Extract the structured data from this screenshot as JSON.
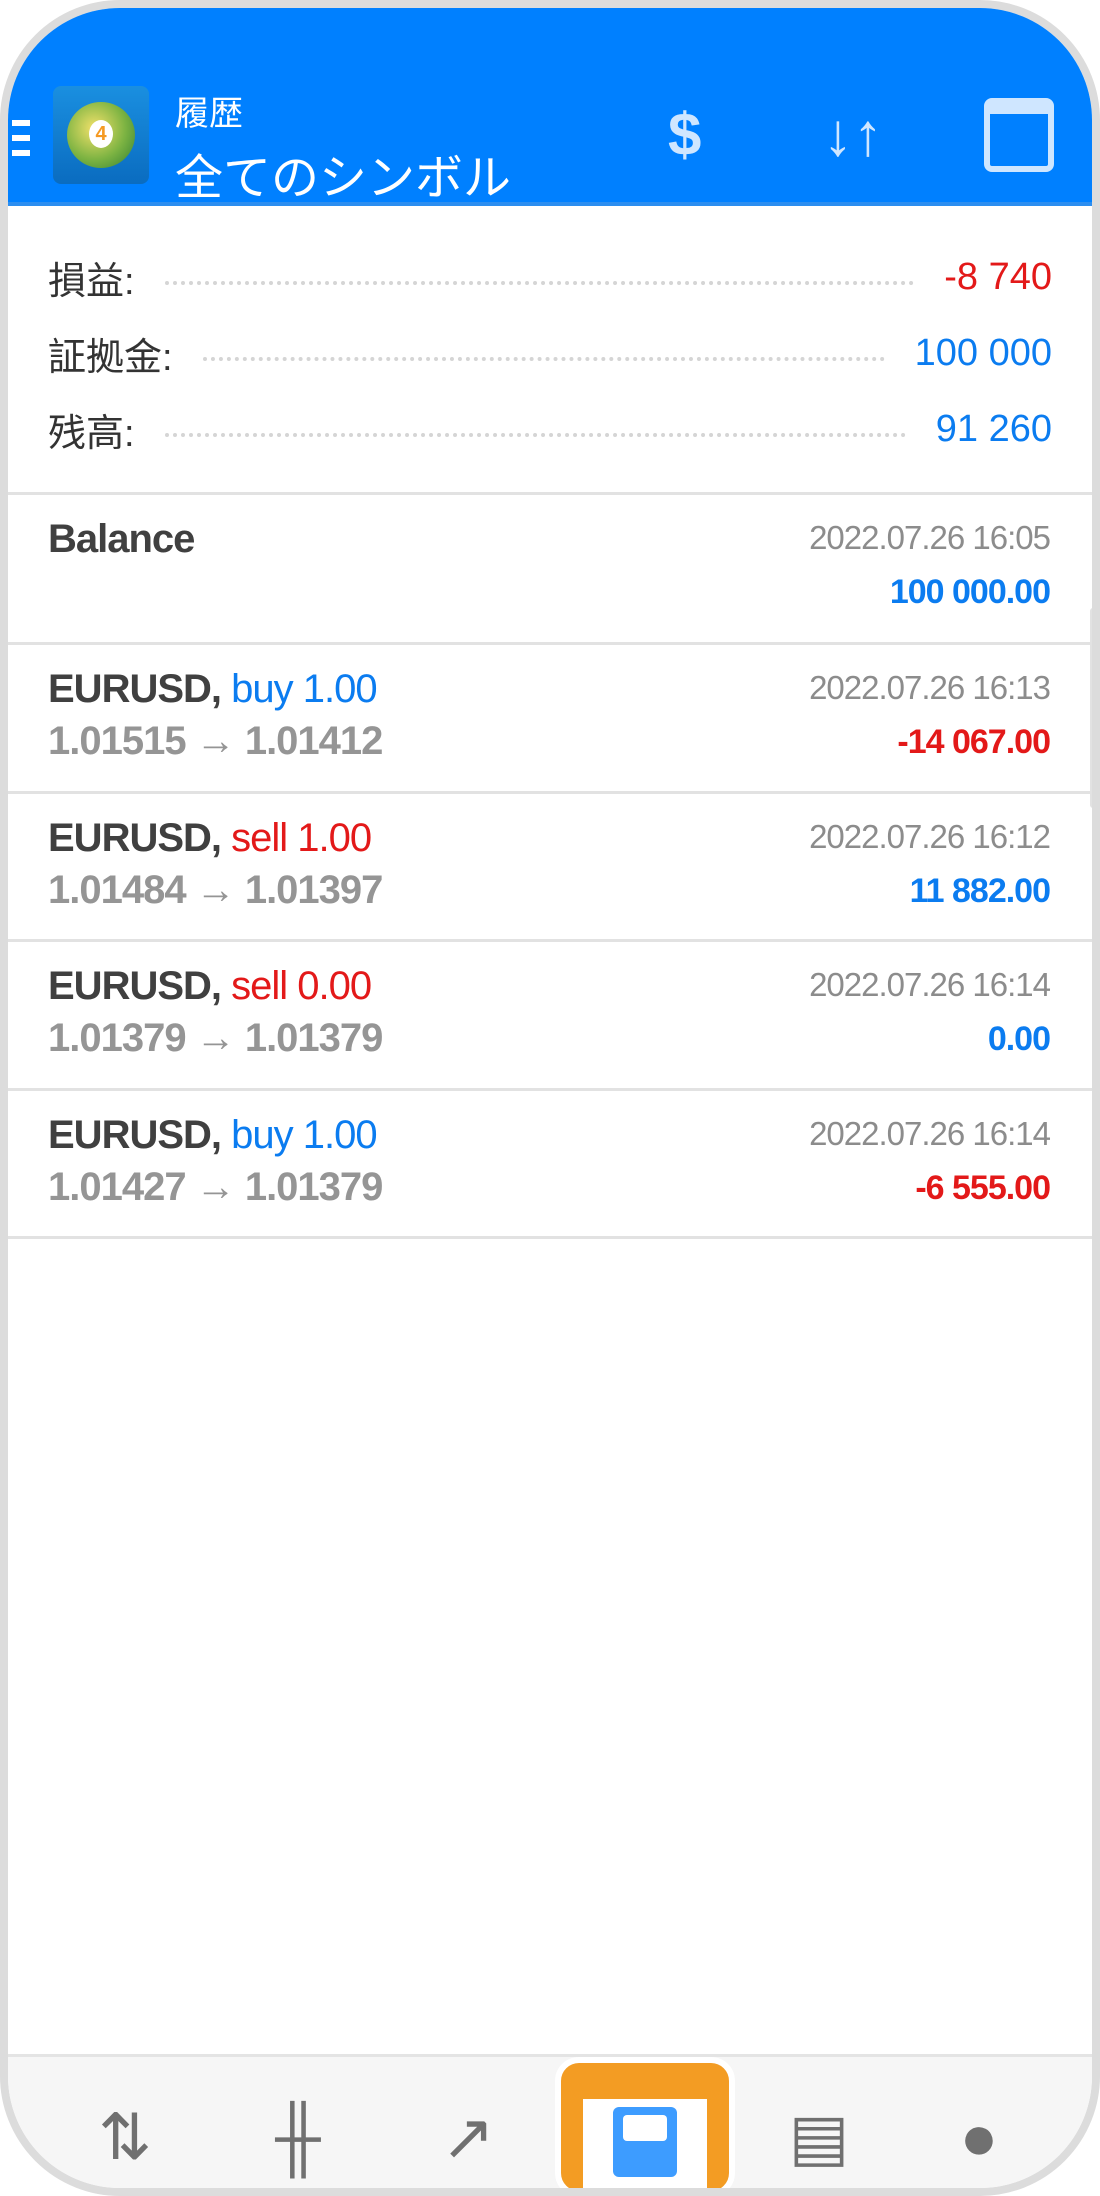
{
  "header": {
    "title": "履歴",
    "subtitle": "全てのシンボル",
    "icons": [
      "menu-icon",
      "mt4-logo",
      "currency-exchange-icon",
      "sort-icon",
      "calendar-icon"
    ]
  },
  "summary": [
    {
      "label": "損益:",
      "value": "-8 740",
      "color": "#e31919"
    },
    {
      "label": "証拠金:",
      "value": "100 000",
      "color": "#0b7cf0"
    },
    {
      "label": "残高:",
      "value": "91 260",
      "color": "#0b7cf0"
    }
  ],
  "balance": {
    "label": "Balance",
    "date": "2022.07.26 16:05",
    "value": "100 000.00"
  },
  "deals": [
    {
      "symbol": "EURUSD,",
      "direction": "buy 1.00",
      "prices": "1.01515 → 1.01412",
      "date": "2022.07.26 16:13",
      "profit": "-14 067.00"
    },
    {
      "symbol": "EURUSD,",
      "direction": "sell 1.00",
      "prices": "1.01484 → 1.01397",
      "date": "2022.07.26 16:12",
      "profit": "11 882.00"
    },
    {
      "symbol": "EURUSD,",
      "direction": "sell 0.00",
      "prices": "1.01379 → 1.01379",
      "date": "2022.07.26 16:14",
      "profit": "0.00"
    },
    {
      "symbol": "EURUSD,",
      "direction": "buy 1.00",
      "prices": "1.01427 → 1.01379",
      "date": "2022.07.26 16:14",
      "profit": "-6 555.00"
    }
  ],
  "nav": {
    "items": [
      "quotes-icon",
      "chart-icon",
      "trade-icon",
      "history-icon",
      "news-icon",
      "chat-icon"
    ],
    "active": "history-icon",
    "active_color": "#f39c23"
  },
  "colors": {
    "header": "#0080ff",
    "positive": "#0b7cf0",
    "negative": "#e31919"
  }
}
